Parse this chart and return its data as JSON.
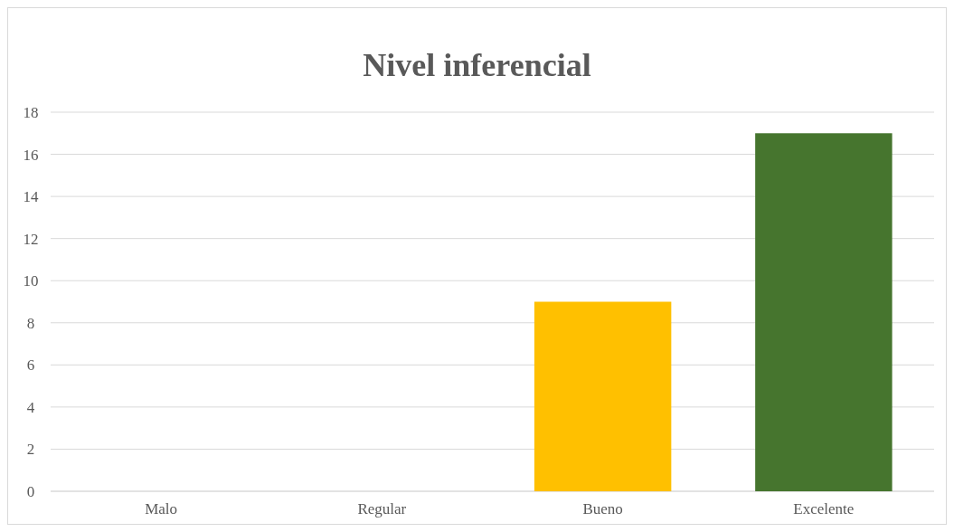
{
  "chart_data": {
    "type": "bar",
    "title": "Nivel inferencial",
    "categories": [
      "Malo",
      "Regular",
      "Bueno",
      "Excelente"
    ],
    "values": [
      0,
      0,
      9,
      17
    ],
    "colors": [
      "#ffc000",
      "#ffc000",
      "#ffc000",
      "#46752e"
    ],
    "ylim": [
      0,
      18
    ],
    "yticks": [
      0,
      2,
      4,
      6,
      8,
      10,
      12,
      14,
      16,
      18
    ],
    "grid": "y"
  }
}
